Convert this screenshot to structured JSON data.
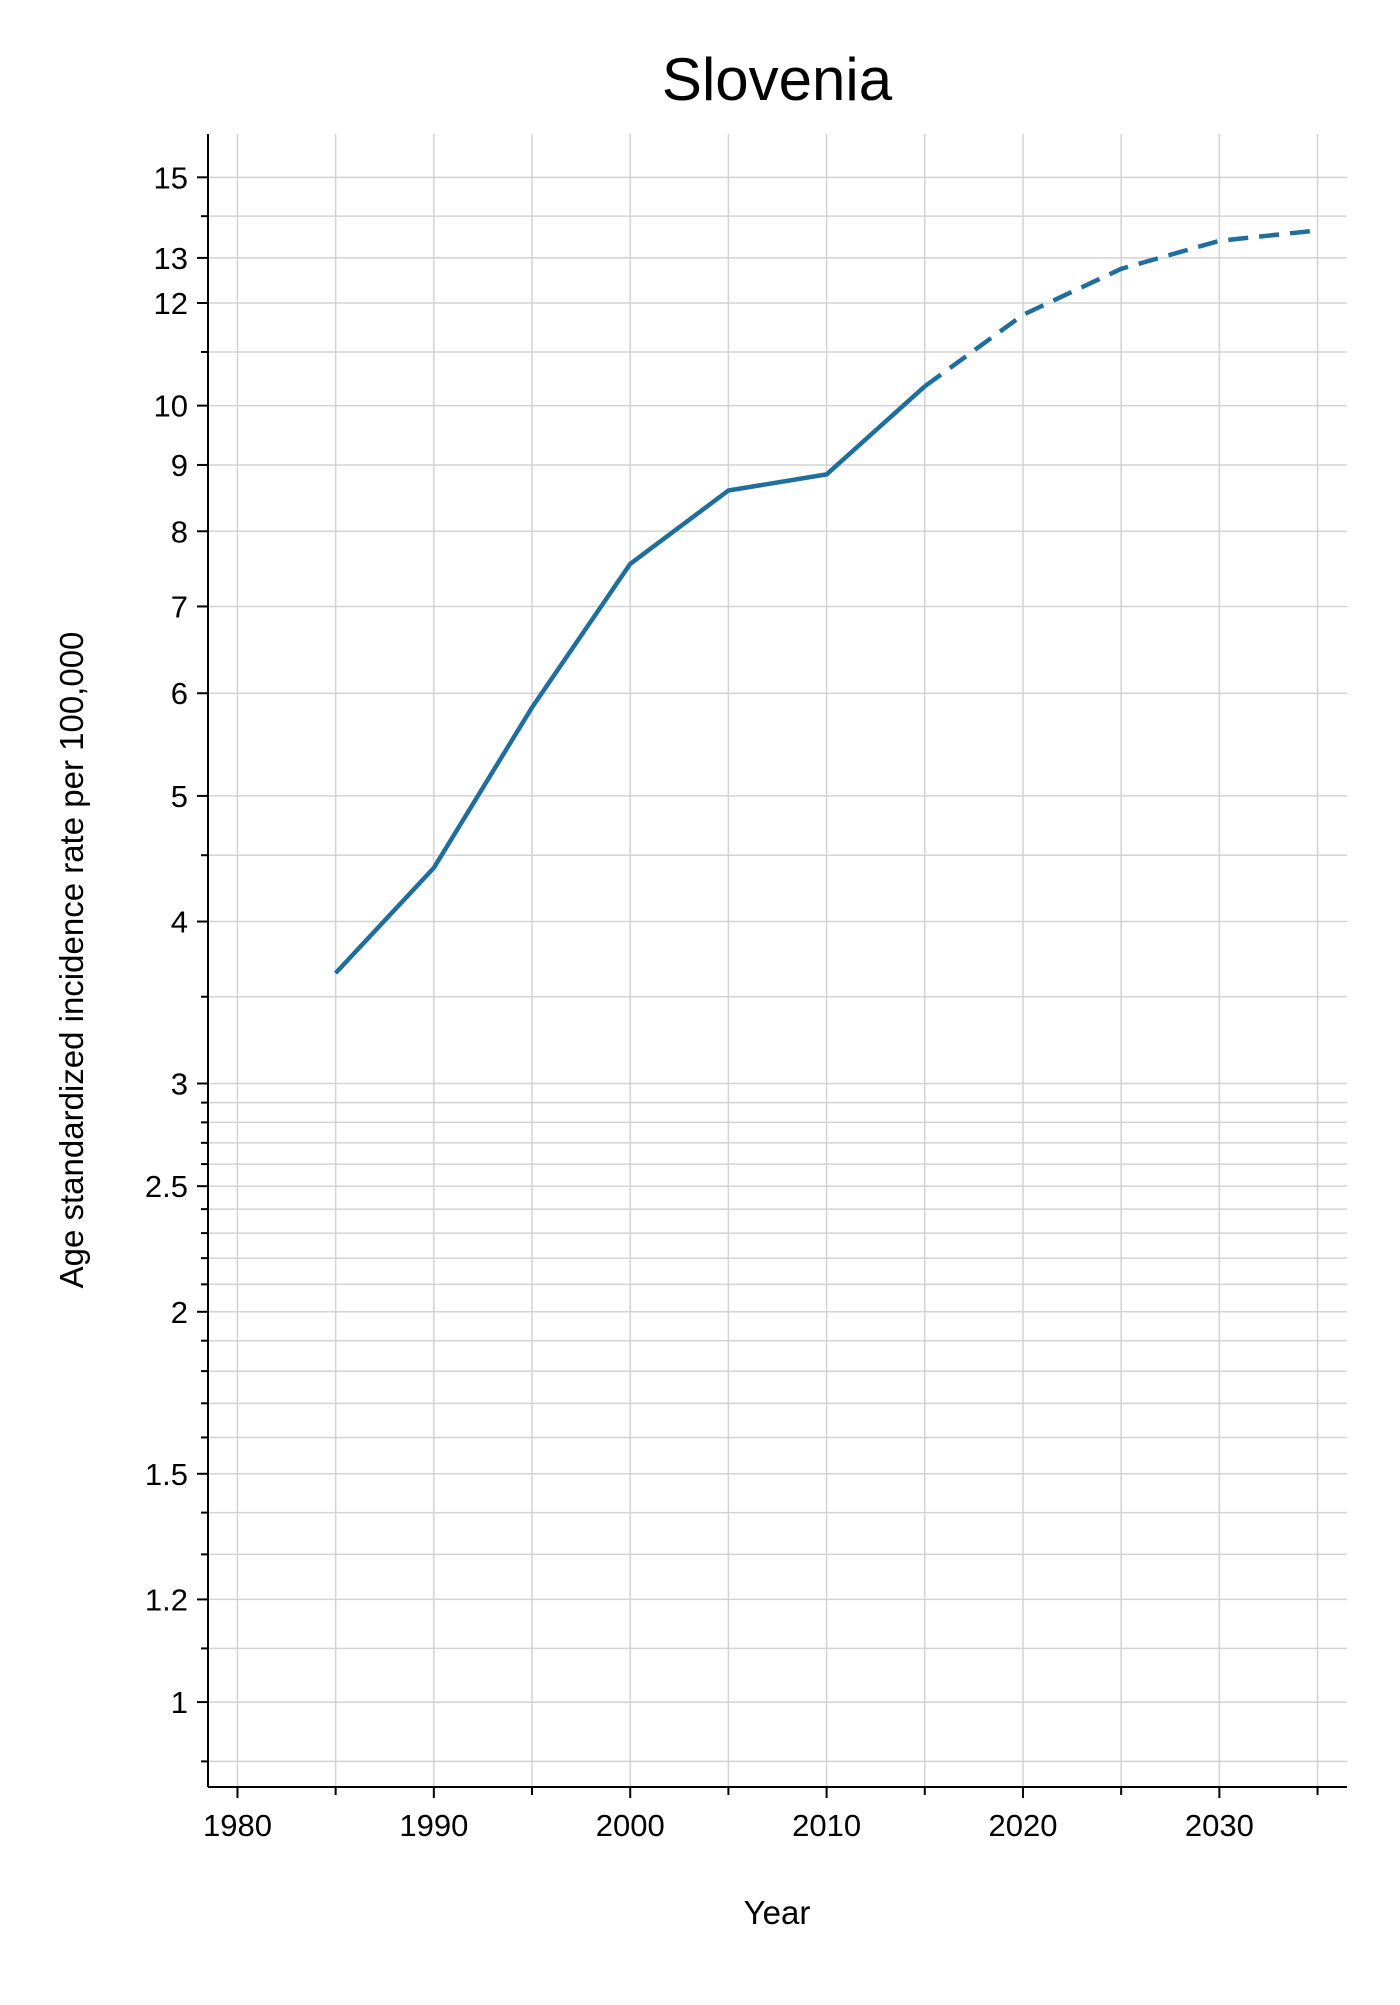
{
  "chart_data": {
    "type": "line",
    "title": "Slovenia",
    "xlabel": "Year",
    "ylabel": "Age standardized incidence rate per 100,000",
    "x_scale": "linear",
    "y_scale": "log",
    "xlim": [
      1978.5,
      2036.5
    ],
    "ylim": [
      0.86,
      16.2
    ],
    "x_ticks": [
      1980,
      1990,
      2000,
      2010,
      2020,
      2030
    ],
    "x_tick_labels": [
      "1980",
      "1990",
      "2000",
      "2010",
      "2020",
      "2030"
    ],
    "x_minor_ticks": [
      1985,
      1995,
      2005,
      2015,
      2025,
      2035
    ],
    "y_ticks": [
      1,
      1.2,
      1.5,
      2,
      2.5,
      3,
      4,
      5,
      6,
      7,
      8,
      9,
      10,
      12,
      13,
      15
    ],
    "y_tick_labels": [
      "1",
      "1.2",
      "1.5",
      "2",
      "2.5",
      "3",
      "4",
      "5",
      "6",
      "7",
      "8",
      "9",
      "10",
      "12",
      "13",
      "15"
    ],
    "y_minor_ticks": [
      0.9,
      1.1,
      1.3,
      1.4,
      1.6,
      1.7,
      1.8,
      1.9,
      2.1,
      2.2,
      2.3,
      2.4,
      2.6,
      2.7,
      2.8,
      2.9,
      3.5,
      4.5,
      11,
      14
    ],
    "grid": true,
    "series": [
      {
        "style": "solid",
        "color": "#1f6e9c",
        "x": [
          1985,
          1990,
          1995,
          2000,
          2005,
          2010,
          2015
        ],
        "y": [
          3.65,
          4.4,
          5.85,
          7.55,
          8.6,
          8.85,
          10.35
        ]
      },
      {
        "style": "dashed",
        "color": "#1f6e9c",
        "x": [
          2015,
          2020,
          2025,
          2030,
          2035
        ],
        "y": [
          10.35,
          11.75,
          12.75,
          13.4,
          13.65
        ]
      }
    ]
  },
  "colors": {
    "line": "#1f6e9c",
    "grid": "#d3d3d3",
    "axis": "#000000"
  }
}
